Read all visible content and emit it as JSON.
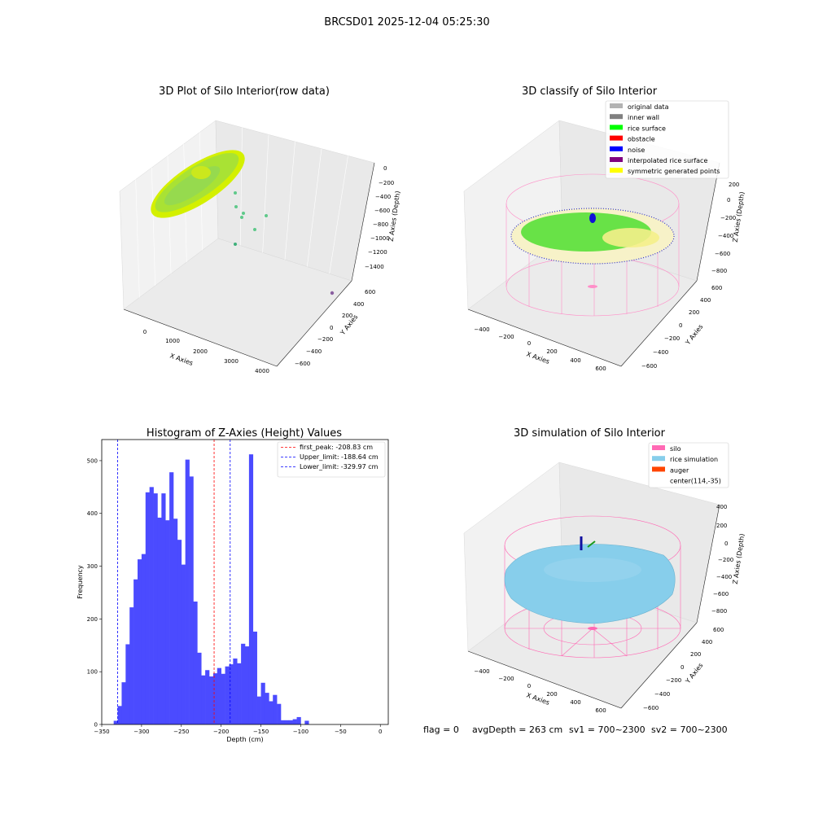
{
  "suptitle": "BRCSD01 2025-12-04 05:25:30",
  "panel_raw": {
    "title": "3D Plot of Silo Interior(row data)",
    "xlabel": "X Axies",
    "ylabel": "Y Axies",
    "zlabel": "Z Axies (Depth)",
    "x_ticks": [
      "0",
      "1000",
      "2000",
      "3000",
      "4000"
    ],
    "y_ticks": [
      "600",
      "400",
      "200",
      "0",
      "−200",
      "−400",
      "−600"
    ],
    "z_ticks": [
      "0",
      "−200",
      "−400",
      "−600",
      "−800",
      "−1000",
      "−1200",
      "−1400"
    ]
  },
  "panel_classify": {
    "title": "3D classify of Silo Interior",
    "xlabel": "X Axies",
    "ylabel": "Y Axies",
    "zlabel": "Z Axies (Depth)",
    "x_ticks": [
      "−400",
      "−200",
      "0",
      "200",
      "400",
      "600"
    ],
    "y_ticks": [
      "600",
      "400",
      "200",
      "0",
      "−200",
      "−400",
      "−600"
    ],
    "z_ticks": [
      "200",
      "0",
      "−200",
      "−400",
      "−600",
      "−800"
    ],
    "legend": [
      {
        "label": "original data",
        "color": "#b3b3b3"
      },
      {
        "label": "inner wall",
        "color": "#808080"
      },
      {
        "label": "rice surface",
        "color": "#00ff00"
      },
      {
        "label": "obstacle",
        "color": "#ff0000"
      },
      {
        "label": "noise",
        "color": "#0000ff"
      },
      {
        "label": "interpolated rice surface",
        "color": "#800080"
      },
      {
        "label": "symmetric generated points",
        "color": "#ffff00"
      }
    ]
  },
  "panel_sim": {
    "title": "3D simulation of Silo Interior",
    "xlabel": "X Axies",
    "ylabel": "Y Axies",
    "zlabel": "Z Axies (Depth)",
    "x_ticks": [
      "−400",
      "−200",
      "0",
      "200",
      "400",
      "600"
    ],
    "y_ticks": [
      "600",
      "400",
      "200",
      "0",
      "−200",
      "−400",
      "−600"
    ],
    "z_ticks": [
      "400",
      "200",
      "0",
      "−200",
      "−400",
      "−600",
      "−800"
    ],
    "legend": [
      {
        "label": "silo",
        "color": "#ff69b4"
      },
      {
        "label": "rice simulation",
        "color": "#87ceeb"
      },
      {
        "label": "auger",
        "color": "#ff4500"
      },
      {
        "label": "center(114,-35)",
        "color": ""
      }
    ]
  },
  "footer": {
    "flag": "flag = 0",
    "avg": "avgDepth = 263 cm",
    "sv1": "sv1 = 700~2300",
    "sv2": "sv2 = 700~2300"
  },
  "chart_data": {
    "type": "bar",
    "title": "Histogram of Z-Axies (Height) Values",
    "xlabel": "Depth (cm)",
    "ylabel": "Frequency",
    "xlim": [
      -350,
      10
    ],
    "ylim": [
      0,
      540
    ],
    "bar_color": "#4b4bff",
    "bin_edges_start": -335,
    "bin_width": 5,
    "x_ticks": [
      -350,
      -300,
      -250,
      -200,
      -150,
      -100,
      -50,
      0
    ],
    "y_ticks": [
      0,
      100,
      200,
      300,
      400,
      500
    ],
    "values": [
      7,
      35,
      80,
      152,
      222,
      275,
      313,
      323,
      440,
      450,
      438,
      392,
      438,
      387,
      478,
      390,
      350,
      303,
      502,
      470,
      233,
      136,
      93,
      103,
      91,
      97,
      107,
      96,
      110,
      114,
      125,
      116,
      153,
      148,
      512,
      176,
      53,
      79,
      60,
      44,
      56,
      39,
      8,
      8,
      8,
      10,
      14,
      0,
      7
    ],
    "lines": [
      {
        "label": "first_peak: -208.83 cm",
        "x": -208.83,
        "color": "#ff0000"
      },
      {
        "label": "Upper_limit: -188.64 cm",
        "x": -188.64,
        "color": "#0000ff"
      },
      {
        "label": "Lower_limit: -329.97 cm",
        "x": -329.97,
        "color": "#0000ff"
      }
    ]
  }
}
